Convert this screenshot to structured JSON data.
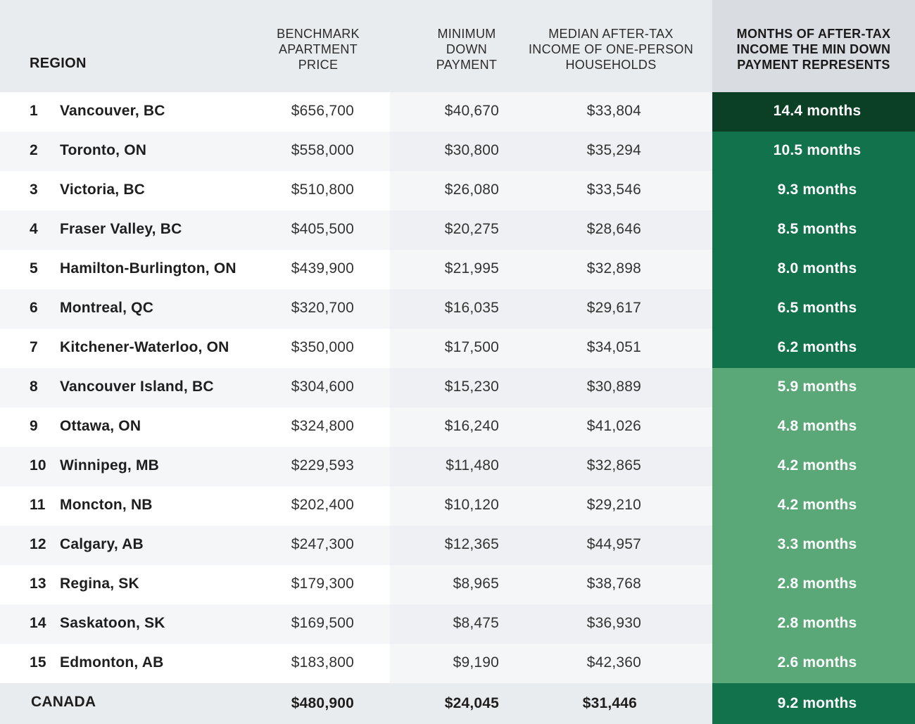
{
  "header": {
    "region": "REGION",
    "benchmark": [
      "BENCHMARK",
      "APARTMENT",
      "PRICE"
    ],
    "min_down": [
      "MINIMUM",
      "DOWN",
      "PAYMENT"
    ],
    "median_income": [
      "MEDIAN AFTER-TAX",
      "INCOME OF ONE-PERSON",
      "HOUSEHOLDS"
    ],
    "months": [
      "MONTHS OF AFTER-TAX",
      "INCOME THE MIN DOWN",
      "PAYMENT REPRESENTS"
    ]
  },
  "colors": {
    "header_bg": "#e9ecef",
    "header_months_bg": "#d9dde1",
    "row_alt_bg": "#f5f6f8",
    "row_bg": "#ffffff",
    "shaded_col_bg": "#e9ecef",
    "tier_darkest": "#0b3f26",
    "tier_dark": "#11724b",
    "tier_light": "#5aa878",
    "text_dark": "#1e1e1e",
    "text_light": "#ffffff"
  },
  "chart_data": {
    "type": "table",
    "columns": [
      "REGION",
      "BENCHMARK APARTMENT PRICE",
      "MINIMUM DOWN PAYMENT",
      "MEDIAN AFTER-TAX INCOME OF ONE-PERSON HOUSEHOLDS",
      "MONTHS OF AFTER-TAX INCOME THE MIN DOWN PAYMENT REPRESENTS"
    ],
    "rows": [
      {
        "rank": "1",
        "region": "Vancouver, BC",
        "price": "$656,700",
        "down": "$40,670",
        "income": "$33,804",
        "months": 14.4,
        "months_label": "14.4 months",
        "tier": "darkest"
      },
      {
        "rank": "2",
        "region": "Toronto, ON",
        "price": "$558,000",
        "down": "$30,800",
        "income": "$35,294",
        "months": 10.5,
        "months_label": "10.5 months",
        "tier": "dark"
      },
      {
        "rank": "3",
        "region": "Victoria, BC",
        "price": "$510,800",
        "down": "$26,080",
        "income": "$33,546",
        "months": 9.3,
        "months_label": "9.3 months",
        "tier": "dark"
      },
      {
        "rank": "4",
        "region": "Fraser Valley, BC",
        "price": "$405,500",
        "down": "$20,275",
        "income": "$28,646",
        "months": 8.5,
        "months_label": "8.5 months",
        "tier": "dark"
      },
      {
        "rank": "5",
        "region": "Hamilton-Burlington, ON",
        "price": "$439,900",
        "down": "$21,995",
        "income": "$32,898",
        "months": 8.0,
        "months_label": "8.0 months",
        "tier": "dark"
      },
      {
        "rank": "6",
        "region": "Montreal, QC",
        "price": "$320,700",
        "down": "$16,035",
        "income": "$29,617",
        "months": 6.5,
        "months_label": "6.5 months",
        "tier": "dark"
      },
      {
        "rank": "7",
        "region": "Kitchener-Waterloo, ON",
        "price": "$350,000",
        "down": "$17,500",
        "income": "$34,051",
        "months": 6.2,
        "months_label": "6.2 months",
        "tier": "dark"
      },
      {
        "rank": "8",
        "region": "Vancouver Island, BC",
        "price": "$304,600",
        "down": "$15,230",
        "income": "$30,889",
        "months": 5.9,
        "months_label": "5.9 months",
        "tier": "light"
      },
      {
        "rank": "9",
        "region": "Ottawa, ON",
        "price": "$324,800",
        "down": "$16,240",
        "income": "$41,026",
        "months": 4.8,
        "months_label": "4.8 months",
        "tier": "light"
      },
      {
        "rank": "10",
        "region": "Winnipeg, MB",
        "price": "$229,593",
        "down": "$11,480",
        "income": "$32,865",
        "months": 4.2,
        "months_label": "4.2 months",
        "tier": "light"
      },
      {
        "rank": "11",
        "region": "Moncton, NB",
        "price": "$202,400",
        "down": "$10,120",
        "income": "$29,210",
        "months": 4.2,
        "months_label": "4.2 months",
        "tier": "light"
      },
      {
        "rank": "12",
        "region": "Calgary, AB",
        "price": "$247,300",
        "down": "$12,365",
        "income": "$44,957",
        "months": 3.3,
        "months_label": "3.3 months",
        "tier": "light"
      },
      {
        "rank": "13",
        "region": "Regina, SK",
        "price": "$179,300",
        "down": "$8,965",
        "income": "$38,768",
        "months": 2.8,
        "months_label": "2.8 months",
        "tier": "light"
      },
      {
        "rank": "14",
        "region": "Saskatoon, SK",
        "price": "$169,500",
        "down": "$8,475",
        "income": "$36,930",
        "months": 2.8,
        "months_label": "2.8 months",
        "tier": "light"
      },
      {
        "rank": "15",
        "region": "Edmonton, AB",
        "price": "$183,800",
        "down": "$9,190",
        "income": "$42,360",
        "months": 2.6,
        "months_label": "2.6 months",
        "tier": "light"
      }
    ],
    "total": {
      "region": "CANADA",
      "price": "$480,900",
      "down": "$24,045",
      "income": "$31,446",
      "months": 9.2,
      "months_label": "9.2 months",
      "tier": "dark"
    }
  }
}
